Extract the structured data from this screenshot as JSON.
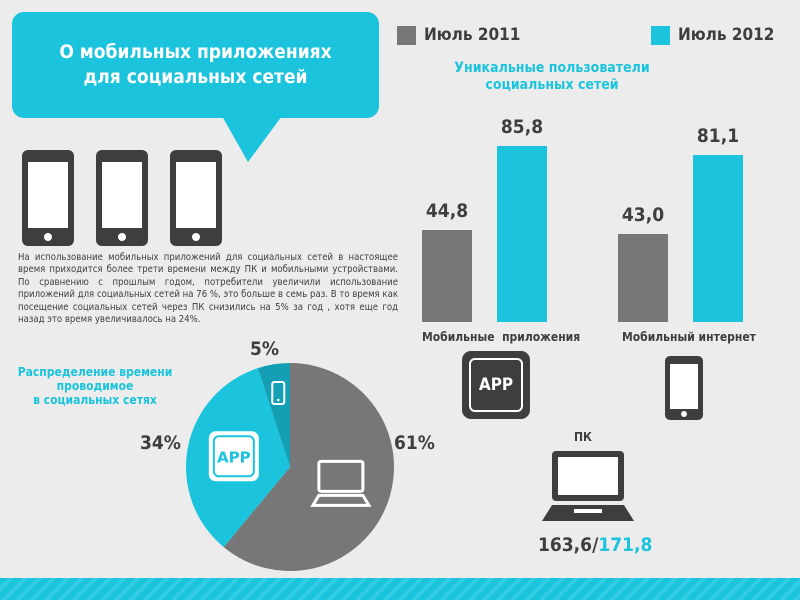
{
  "header": {
    "title": "О мобильных приложениях\nдля социальных сетей"
  },
  "legend": [
    {
      "label": "Июль 2011",
      "color": "#777777"
    },
    {
      "label": "Июль 2012",
      "color": "#1bc4dc"
    }
  ],
  "intro_text": "На использование мобильных приложений для социальных сетей в настоящее время приходится более трети времени между ПК и мобильными устройствами. По сравнению с прошлым годом, потребители увеличили использование приложений для социальных сетей на 76 %, это больше в семь раз. В то время как посещение социальных сетей через ПК снизились на 5% за год , хотя еще год назад это время увеличивалось на 24%.",
  "icons": {
    "app_label": "APP",
    "pc_label": "ПК",
    "pc_values_2011": "163,6/",
    "pc_values_2012": "171,8"
  },
  "chart_data": [
    {
      "type": "bar",
      "title": "Уникальные пользователи\nсоциальных сетей",
      "categories": [
        "Мобильные  приложения",
        "Мобильный интернет"
      ],
      "series": [
        {
          "name": "Июль 2011",
          "values": [
            44.8,
            43.0
          ],
          "labels": [
            "44,8",
            "43,0"
          ]
        },
        {
          "name": "Июль 2012",
          "values": [
            85.8,
            81.1
          ],
          "labels": [
            "85,8",
            "81,1"
          ]
        }
      ],
      "ylim": [
        0,
        90
      ]
    },
    {
      "type": "pie",
      "title": "Распределение времени\nпроводимое\nв социальных сетях",
      "slices": [
        {
          "name": "ПК",
          "value": 61,
          "label": "61%"
        },
        {
          "name": "Приложения",
          "value": 34,
          "label": "34%"
        },
        {
          "name": "Мобильный интернет",
          "value": 5,
          "label": "5%"
        }
      ]
    }
  ],
  "colors": {
    "accent": "#1bc4dc",
    "gray": "#777777",
    "dark": "#3e3e3e"
  }
}
